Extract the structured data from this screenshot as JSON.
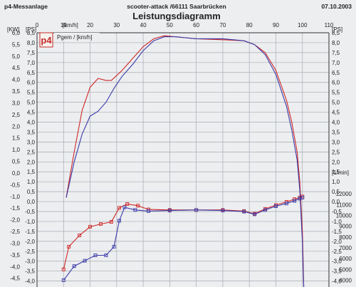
{
  "header": {
    "left": "p4-Messanlage",
    "center": "scooter-attack  /66111 Saarbrücken",
    "right": "07.10.2003",
    "title": "Leistungsdiagramm"
  },
  "logo_text": "p4",
  "chart_data": {
    "type": "line",
    "title": "Leistungsdiagramm",
    "x_unit": "[km/h]",
    "x_ticks": [
      0,
      10,
      20,
      30,
      40,
      50,
      60,
      70,
      80,
      90,
      100,
      110
    ],
    "xlim": [
      0,
      110
    ],
    "left_units": [
      "[KW]",
      "[PS]"
    ],
    "right_units": [
      "[PS]",
      "[1/min]"
    ],
    "kw_ticks": [
      "6,0",
      "5,5",
      "5,0",
      "4,5",
      "4,0",
      "3,5",
      "3,0",
      "2,5",
      "2,0",
      "1,5",
      "1,0",
      "0,5",
      "0,0",
      "-0,5",
      "-1,0",
      "-1,5",
      "-2,0",
      "-2,5",
      "-3,0",
      "-3,5",
      "-4,0",
      "-4,5"
    ],
    "ps_ticks": [
      "8,5",
      "8,0",
      "7,5",
      "7,0",
      "6,5",
      "6,0",
      "5,5",
      "5,0",
      "4,5",
      "4,0",
      "3,5",
      "3,0",
      "2,5",
      "2,0",
      "1,5",
      "1,0",
      "0,5",
      "0,0",
      "-0,5",
      "-1,0",
      "-1,5",
      "-2,0",
      "-2,5",
      "-3,0",
      "-3,5",
      "-4,0"
    ],
    "ps_ylim": [
      -4.3,
      8.5
    ],
    "rpm_ticks": [
      12000,
      11000,
      10000,
      9000,
      8000,
      7000,
      6000,
      5000,
      4000
    ],
    "rpm_ylim": [
      3500,
      12600
    ],
    "legend": "Pgem / [km/h]",
    "series": [
      {
        "role": "power",
        "color": "#d02828",
        "x": [
          11,
          14,
          17,
          20,
          23,
          26,
          28,
          32,
          36,
          40,
          44,
          48,
          52,
          60,
          70,
          78,
          82,
          86,
          90,
          94,
          96,
          98,
          99,
          100,
          100.3,
          100.5
        ],
        "y": [
          0.2,
          2.5,
          4.6,
          5.75,
          6.2,
          6.1,
          6.1,
          6.6,
          7.2,
          7.8,
          8.2,
          8.35,
          8.3,
          8.2,
          8.15,
          8.1,
          7.9,
          7.5,
          6.6,
          5.1,
          4.0,
          2.5,
          1.0,
          -1.5,
          -3.0,
          -4.3
        ]
      },
      {
        "role": "power",
        "color": "#3a3aa8",
        "x": [
          11,
          14,
          17,
          20,
          23,
          26,
          29,
          32,
          36,
          40,
          44,
          48,
          52,
          60,
          70,
          78,
          82,
          86,
          90,
          94,
          96,
          98,
          99,
          100,
          100.3,
          100.5
        ],
        "y": [
          0.2,
          2.0,
          3.4,
          4.3,
          4.55,
          5.0,
          5.7,
          6.3,
          6.9,
          7.6,
          8.1,
          8.3,
          8.3,
          8.2,
          8.2,
          8.1,
          7.9,
          7.4,
          6.4,
          4.8,
          3.6,
          2.1,
          0.6,
          -2.0,
          -3.5,
          -4.3
        ]
      },
      {
        "role": "rpm",
        "color": "#d02828",
        "x": [
          10,
          12,
          16,
          20,
          24,
          28,
          31,
          34,
          38,
          42,
          50,
          60,
          70,
          78,
          82,
          86,
          90,
          94,
          97,
          99,
          100
        ],
        "y": [
          5000,
          7100,
          8150,
          8950,
          9200,
          9400,
          10700,
          11050,
          10900,
          10550,
          10500,
          10500,
          10500,
          10400,
          10150,
          10600,
          10950,
          11250,
          11500,
          11650,
          11750
        ]
      },
      {
        "role": "rpm",
        "color": "#3a3aa8",
        "x": [
          10,
          14,
          18,
          22,
          26,
          29,
          31,
          33,
          37,
          42,
          50,
          60,
          70,
          78,
          82,
          86,
          90,
          94,
          97,
          99,
          100
        ],
        "y": [
          4000,
          5300,
          5800,
          6300,
          6300,
          7100,
          9500,
          10750,
          10500,
          10400,
          10450,
          10500,
          10450,
          10350,
          10100,
          10500,
          10850,
          11100,
          11350,
          11550,
          11650
        ]
      }
    ]
  }
}
